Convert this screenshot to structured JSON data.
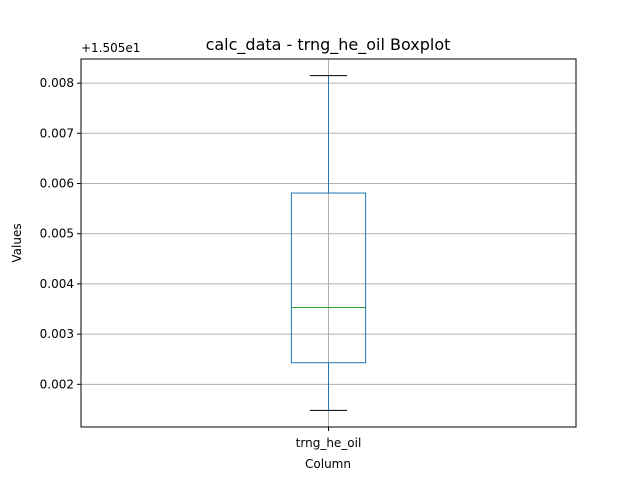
{
  "chart_data": {
    "type": "box",
    "title": "calc_data - trng_he_oil Boxplot",
    "xlabel": "Column",
    "ylabel": "Values",
    "offset_label": "+1.505e1",
    "categories": [
      "trng_he_oil"
    ],
    "boxes": [
      {
        "name": "trng_he_oil",
        "whisker_low": 0.00148,
        "q1": 0.00243,
        "median": 0.00353,
        "q3": 0.00581,
        "whisker_high": 0.00815
      }
    ],
    "yticks": [
      {
        "value": 0.002,
        "label": "0.002"
      },
      {
        "value": 0.003,
        "label": "0.003"
      },
      {
        "value": 0.004,
        "label": "0.004"
      },
      {
        "value": 0.005,
        "label": "0.005"
      },
      {
        "value": 0.006,
        "label": "0.006"
      },
      {
        "value": 0.007,
        "label": "0.007"
      },
      {
        "value": 0.008,
        "label": "0.008"
      }
    ],
    "ylim": [
      0.00115,
      0.00848
    ],
    "grid": true,
    "colors": {
      "box": "#1f77b4",
      "median": "#2ca02c",
      "cap": "#000000",
      "grid": "#b0b0b0"
    }
  }
}
